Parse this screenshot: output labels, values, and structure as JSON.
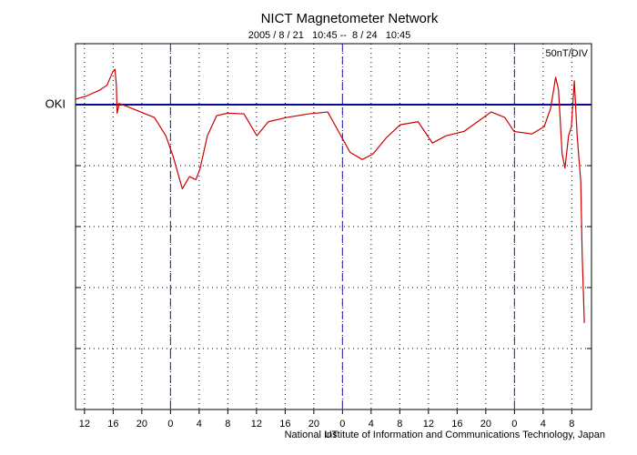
{
  "chart_data": {
    "type": "line",
    "title": "NICT Magnetometer Network",
    "subtitle": "2005 / 8 / 21   10:45 --  8 / 24   10:45",
    "annotation": "50nT/DIV",
    "xlabel": "UT",
    "footer": "National Institute of Information and Communications Technology, Japan",
    "xlim": [
      0,
      72
    ],
    "ylim": [
      -250,
      50
    ],
    "yticks": [
      -200,
      -150,
      -100,
      -50,
      0
    ],
    "xticks": [
      {
        "value": 1.25,
        "label": "12"
      },
      {
        "value": 5.25,
        "label": "16"
      },
      {
        "value": 9.25,
        "label": "20"
      },
      {
        "value": 13.25,
        "label": "0"
      },
      {
        "value": 17.25,
        "label": "4"
      },
      {
        "value": 21.25,
        "label": "8"
      },
      {
        "value": 25.25,
        "label": "12"
      },
      {
        "value": 29.25,
        "label": "16"
      },
      {
        "value": 33.25,
        "label": "20"
      },
      {
        "value": 37.25,
        "label": "0"
      },
      {
        "value": 41.25,
        "label": "4"
      },
      {
        "value": 45.25,
        "label": "8"
      },
      {
        "value": 49.25,
        "label": "12"
      },
      {
        "value": 53.25,
        "label": "16"
      },
      {
        "value": 57.25,
        "label": "20"
      },
      {
        "value": 61.25,
        "label": "0"
      },
      {
        "value": 65.25,
        "label": "4"
      },
      {
        "value": 69.25,
        "label": "8"
      }
    ],
    "grid": true,
    "day_lines": {
      "color": "#2020b0",
      "values": [
        13.25,
        37.25,
        61.25
      ]
    },
    "reference_line": {
      "value": 0,
      "color": "#0a0a90"
    },
    "series": [
      {
        "name": "OKI",
        "color": "#cc0000",
        "x": [
          0,
          1.5,
          3.4,
          4.4,
          5.2,
          5.5,
          5.7,
          5.8,
          6.1,
          7.2,
          9.1,
          11.0,
          12.6,
          13.6,
          14.9,
          15.9,
          16.8,
          17.4,
          18.4,
          19.7,
          21.2,
          23.5,
          25.3,
          26.9,
          29.5,
          32.6,
          35.2,
          36.7,
          38.3,
          40.0,
          41.5,
          43.4,
          45.3,
          47.8,
          49.8,
          51.7,
          54.2,
          56.1,
          58.0,
          59.9,
          61.2,
          63.7,
          65.4,
          66.3,
          67.0,
          67.4,
          67.9,
          68.3,
          68.8,
          69.2,
          69.6,
          70.0,
          70.5,
          70.7,
          71.0
        ],
        "values": [
          4.5,
          7,
          12,
          16,
          27,
          29,
          16,
          -7,
          1,
          -1.5,
          -6,
          -10.5,
          -25.5,
          -42,
          -69,
          -59,
          -61.5,
          -52,
          -25.5,
          -9,
          -7,
          -7.5,
          -25.5,
          -14,
          -10.5,
          -7.5,
          -6,
          -22,
          -39,
          -45,
          -40.5,
          -27,
          -16.5,
          -14,
          -31.5,
          -25.5,
          -22,
          -14,
          -6,
          -10.5,
          -22,
          -24,
          -18,
          -3,
          22.5,
          12,
          -40.5,
          -52,
          -25.5,
          -18,
          19.5,
          -25.5,
          -63,
          -123,
          -179
        ]
      }
    ]
  }
}
